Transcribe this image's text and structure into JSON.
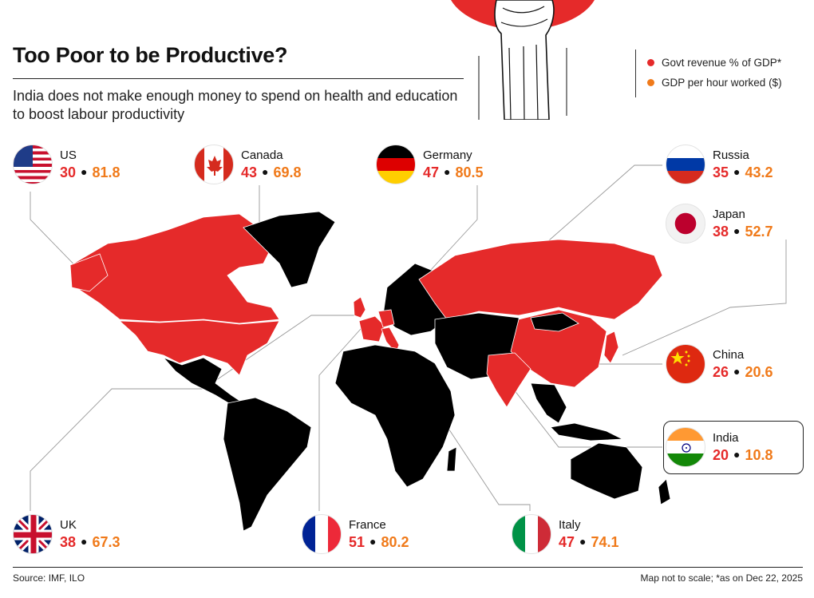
{
  "header": {
    "title": "Too Poor to be Productive?",
    "subtitle": "India does not make enough money to spend on health and education to boost labour productivity"
  },
  "legend": {
    "items": [
      {
        "label": "Govt revenue % of GDP*",
        "color": "#e52a2a"
      },
      {
        "label": "GDP per hour worked ($)",
        "color": "#f07a1a"
      }
    ]
  },
  "colors": {
    "highlighted_country": "#e52a2a",
    "other_country": "#000000",
    "govt_revenue": "#e52a2a",
    "gdp_per_hour": "#f07a1a"
  },
  "countries": {
    "us": {
      "name": "US",
      "govt_revenue": "30",
      "gdp_per_hour": "81.8"
    },
    "canada": {
      "name": "Canada",
      "govt_revenue": "43",
      "gdp_per_hour": "69.8"
    },
    "germany": {
      "name": "Germany",
      "govt_revenue": "47",
      "gdp_per_hour": "80.5"
    },
    "russia": {
      "name": "Russia",
      "govt_revenue": "35",
      "gdp_per_hour": "43.2"
    },
    "japan": {
      "name": "Japan",
      "govt_revenue": "38",
      "gdp_per_hour": "52.7"
    },
    "china": {
      "name": "China",
      "govt_revenue": "26",
      "gdp_per_hour": "20.6"
    },
    "india": {
      "name": "India",
      "govt_revenue": "20",
      "gdp_per_hour": "10.8"
    },
    "uk": {
      "name": "UK",
      "govt_revenue": "38",
      "gdp_per_hour": "67.3"
    },
    "france": {
      "name": "France",
      "govt_revenue": "51",
      "gdp_per_hour": "80.2"
    },
    "italy": {
      "name": "Italy",
      "govt_revenue": "47",
      "gdp_per_hour": "74.1"
    }
  },
  "footer": {
    "source": "Source: IMF, ILO",
    "note": "Map not to scale; *as on Dec 22, 2025"
  }
}
